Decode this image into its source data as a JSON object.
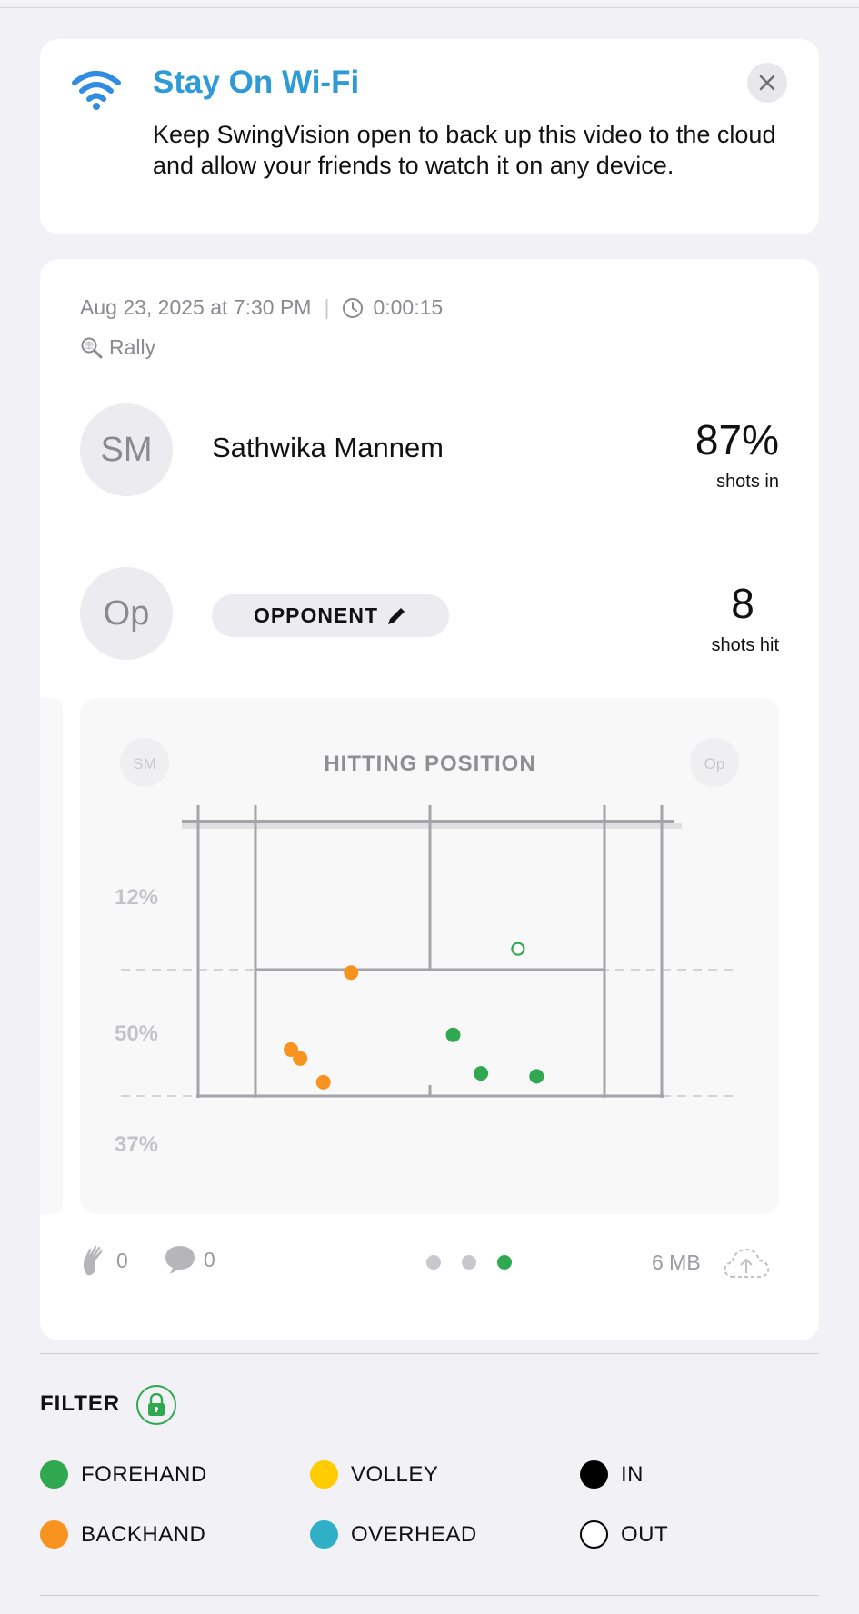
{
  "wifi_banner": {
    "title": "Stay On Wi-Fi",
    "body": "Keep SwingVision open to back up this video to the cloud and allow your friends to watch it on any device.",
    "icon": "wifi-icon",
    "close_icon": "close-icon"
  },
  "session": {
    "date": "Aug 23, 2025 at 7:30 PM",
    "duration": "0:00:15",
    "type": "Rally"
  },
  "player": {
    "initials": "SM",
    "name": "Sathwika Mannem",
    "stat_value": "87%",
    "stat_label": "shots in"
  },
  "opponent": {
    "initials": "Op",
    "label": "OPPONENT",
    "stat_value": "8",
    "stat_label": "shots hit"
  },
  "chart": {
    "title": "HITTING POSITION",
    "left_avatar": "SM",
    "right_avatar": "Op",
    "zone_labels": [
      "12%",
      "50%",
      "37%"
    ]
  },
  "chart_data": {
    "type": "scatter",
    "title": "HITTING POSITION",
    "zones": [
      {
        "label": "12%"
      },
      {
        "label": "50%"
      },
      {
        "label": "37%"
      }
    ],
    "series": [
      {
        "name": "FOREHAND",
        "color": "#2fa84f",
        "points": [
          {
            "x": 0.69,
            "y": 0.43,
            "out": true
          },
          {
            "x": 0.55,
            "y": 0.72
          },
          {
            "x": 0.61,
            "y": 0.85
          },
          {
            "x": 0.73,
            "y": 0.86
          }
        ]
      },
      {
        "name": "BACKHAND",
        "color": "#f7931e",
        "points": [
          {
            "x": 0.33,
            "y": 0.51
          },
          {
            "x": 0.2,
            "y": 0.77
          },
          {
            "x": 0.22,
            "y": 0.8
          },
          {
            "x": 0.27,
            "y": 0.88
          }
        ]
      }
    ]
  },
  "footer": {
    "likes": "0",
    "comments": "0",
    "size": "6 MB",
    "page_count": 3,
    "active_page": 3
  },
  "filter": {
    "title": "FILTER",
    "items": [
      {
        "label": "FOREHAND",
        "color": "#2fa84f"
      },
      {
        "label": "VOLLEY",
        "color": "#ffcc00"
      },
      {
        "label": "IN",
        "color": "#000000"
      },
      {
        "label": "BACKHAND",
        "color": "#f7931e"
      },
      {
        "label": "OVERHEAD",
        "color": "#30b0c7"
      },
      {
        "label": "OUT",
        "color": "outline"
      }
    ]
  }
}
